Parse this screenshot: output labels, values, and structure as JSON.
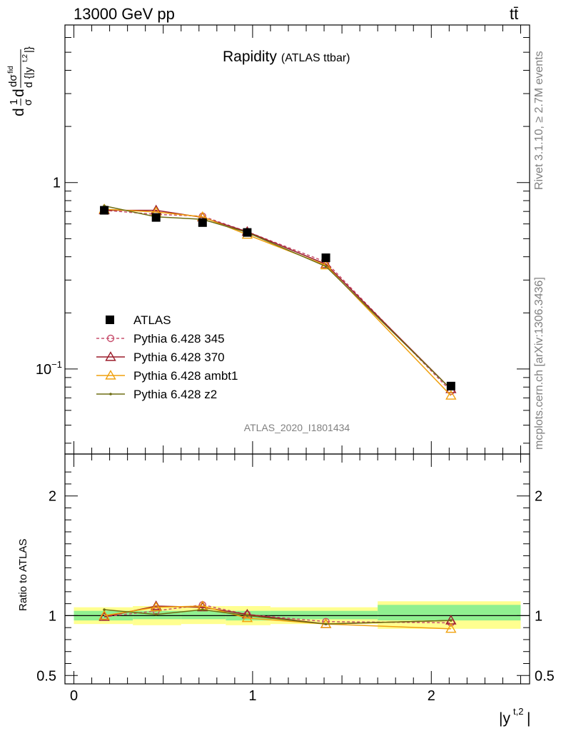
{
  "header": {
    "left": "13000 GeV pp",
    "right": "tt̄"
  },
  "side_labels": {
    "rivet": "Rivet 3.1.10, ≥ 2.7M events",
    "mcplots": "mcplots.cern.ch [arXiv:1306.3436]"
  },
  "chart_data": [
    {
      "type": "line",
      "title": "Rapidity",
      "subtitle": "(ATLAS ttbar)",
      "watermark": "ATLAS_2020_I1801434",
      "ylabel": "d 1/σ dσ^{fid}/d{|y^{t,2}|}",
      "xlabel": "|y^{t,2}|",
      "yscale": "log",
      "ylim": [
        0.035,
        7.0
      ],
      "xlim": [
        -0.05,
        2.55
      ],
      "ytick_labels": [
        {
          "value": 0.1,
          "label": "10",
          "exp": "−1"
        },
        {
          "value": 1,
          "label": "1"
        }
      ],
      "legend_position": "lower-left",
      "series": [
        {
          "name": "ATLAS",
          "kind": "data",
          "color": "#000000",
          "x": [
            0.17,
            0.46,
            0.72,
            0.97,
            1.41,
            2.11
          ],
          "values": [
            0.71,
            0.65,
            0.61,
            0.54,
            0.395,
            0.081
          ],
          "xbins": [
            [
              0.0,
              0.33
            ],
            [
              0.33,
              0.6
            ],
            [
              0.6,
              0.85
            ],
            [
              0.85,
              1.1
            ],
            [
              1.1,
              1.7
            ],
            [
              1.7,
              2.5
            ]
          ]
        },
        {
          "name": "Pythia 6.428 345",
          "kind": "mc",
          "color": "#c8506e",
          "dash": "4,3",
          "marker": "circle",
          "x": [
            0.17,
            0.46,
            0.72,
            0.97,
            1.41,
            2.11
          ],
          "values": [
            0.71,
            0.675,
            0.66,
            0.545,
            0.375,
            0.076
          ]
        },
        {
          "name": "Pythia 6.428 370",
          "kind": "mc",
          "color": "#9b1c2a",
          "marker": "triangle",
          "x": [
            0.17,
            0.46,
            0.72,
            0.97,
            1.41,
            2.11
          ],
          "values": [
            0.71,
            0.71,
            0.65,
            0.545,
            0.365,
            0.078
          ]
        },
        {
          "name": "Pythia 6.428 ambt1",
          "kind": "mc",
          "color": "#f0a10f",
          "marker": "triangle",
          "x": [
            0.17,
            0.46,
            0.72,
            0.97,
            1.41,
            2.11
          ],
          "values": [
            0.72,
            0.695,
            0.655,
            0.525,
            0.36,
            0.072
          ]
        },
        {
          "name": "Pythia 6.428 z2",
          "kind": "mc",
          "color": "#6e6e14",
          "marker": "dot",
          "x": [
            0.17,
            0.46,
            0.72,
            0.97,
            1.41,
            2.11
          ],
          "values": [
            0.75,
            0.655,
            0.635,
            0.54,
            0.355,
            0.078
          ]
        }
      ]
    },
    {
      "type": "line",
      "ylabel": "Ratio to ATLAS",
      "ylim": [
        0.43,
        2.35
      ],
      "yticks": [
        0.5,
        1,
        2
      ],
      "ytick_labels": [
        "0.5",
        "1",
        "2"
      ],
      "xticks": [
        0,
        1,
        2
      ],
      "xtick_labels": [
        "0",
        "1",
        "2"
      ],
      "bands": {
        "inner_color": "#90f090",
        "outer_color": "#ffff90",
        "inner": [
          [
            0.96,
            1.04
          ],
          [
            0.97,
            1.04
          ],
          [
            0.97,
            1.04
          ],
          [
            0.96,
            1.04
          ],
          [
            0.97,
            1.04
          ],
          [
            0.96,
            1.09
          ]
        ],
        "outer": [
          [
            0.93,
            1.07
          ],
          [
            0.92,
            1.08
          ],
          [
            0.93,
            1.08
          ],
          [
            0.92,
            1.08
          ],
          [
            0.93,
            1.07
          ],
          [
            0.89,
            1.12
          ]
        ]
      },
      "series": [
        {
          "name": "Pythia 6.428 345",
          "color": "#c8506e",
          "dash": "4,3",
          "marker": "circle",
          "values": [
            0.99,
            1.04,
            1.09,
            1.01,
            0.95,
            0.94
          ]
        },
        {
          "name": "Pythia 6.428 370",
          "color": "#9b1c2a",
          "marker": "triangle",
          "values": [
            0.99,
            1.08,
            1.07,
            1.01,
            0.93,
            0.96
          ]
        },
        {
          "name": "Pythia 6.428 ambt1",
          "color": "#f0a10f",
          "marker": "triangle",
          "values": [
            1.0,
            1.07,
            1.08,
            0.98,
            0.93,
            0.89
          ]
        },
        {
          "name": "Pythia 6.428 z2",
          "color": "#6e6e14",
          "marker": "dot",
          "values": [
            1.05,
            1.01,
            1.05,
            1.0,
            0.93,
            0.96
          ]
        }
      ]
    }
  ]
}
